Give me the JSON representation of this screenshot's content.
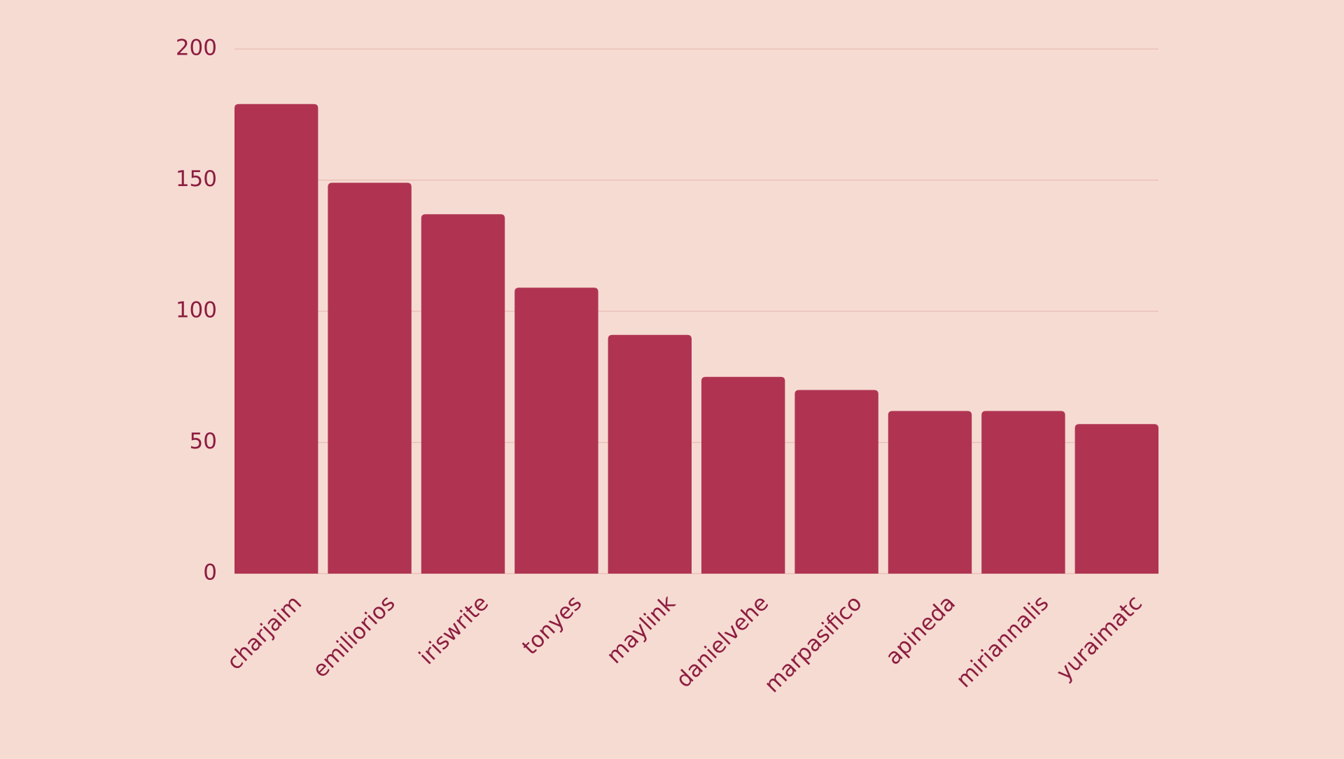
{
  "colors": {
    "background": "#F6DBD2",
    "bar": "#B03452",
    "text": "#8C1D40",
    "grid": "#E8BDB6"
  },
  "chart_data": {
    "type": "bar",
    "title": "",
    "xlabel": "",
    "ylabel": "",
    "ylim": [
      0,
      200
    ],
    "yticks": [
      0,
      50,
      100,
      150,
      200
    ],
    "grid": true,
    "categories": [
      "charjaim",
      "emiliorios",
      "iriswrite",
      "tonyes",
      "maylink",
      "danielvehe",
      "marpasifico",
      "apineda",
      "miriannalis",
      "yuraimatc"
    ],
    "values": [
      179,
      149,
      137,
      109,
      91,
      75,
      70,
      62,
      62,
      57
    ]
  }
}
